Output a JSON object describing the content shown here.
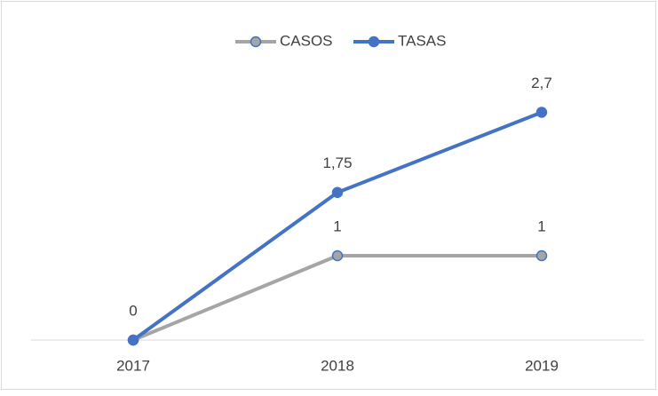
{
  "chart_data": {
    "type": "line",
    "categories": [
      "2017",
      "2018",
      "2019"
    ],
    "series": [
      {
        "name": "CASOS",
        "color": "#a5a5a5",
        "marker_edge": "#4472c4",
        "values": [
          0,
          1,
          1
        ],
        "value_labels": [
          null,
          "1",
          "1"
        ]
      },
      {
        "name": "TASAS",
        "color": "#4472c4",
        "marker_edge": "#4472c4",
        "values": [
          0,
          1.75,
          2.7
        ],
        "value_labels": [
          "0",
          "1,75",
          "2,7"
        ]
      }
    ],
    "ylim": [
      0,
      3
    ],
    "legend": "top"
  }
}
